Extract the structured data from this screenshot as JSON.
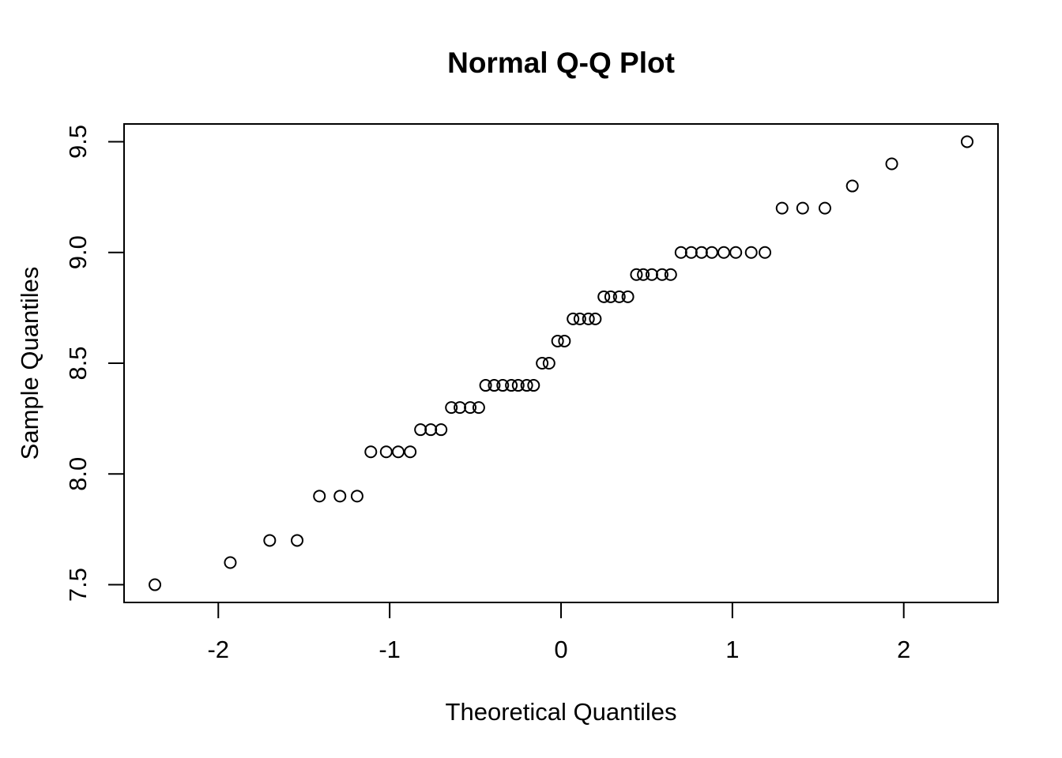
{
  "chart_data": {
    "type": "scatter",
    "title": "Normal Q-Q Plot",
    "xlabel": "Theoretical Quantiles",
    "ylabel": "Sample Quantiles",
    "xlim": [
      -2.55,
      2.55
    ],
    "ylim": [
      7.42,
      9.58
    ],
    "xticks": [
      -2,
      -1,
      0,
      1,
      2
    ],
    "xtick_labels": [
      "-2",
      "-1",
      "0",
      "1",
      "2"
    ],
    "yticks": [
      7.5,
      8.0,
      8.5,
      9.0,
      9.5
    ],
    "ytick_labels": [
      "7.5",
      "8.0",
      "8.5",
      "9.0",
      "9.5"
    ],
    "grid": false,
    "marker": "open-circle",
    "series": [
      {
        "points": [
          {
            "x": -2.37,
            "y": 7.5
          },
          {
            "x": -1.93,
            "y": 7.6
          },
          {
            "x": -1.7,
            "y": 7.7
          },
          {
            "x": -1.54,
            "y": 7.7
          },
          {
            "x": -1.41,
            "y": 7.9
          },
          {
            "x": -1.29,
            "y": 7.9
          },
          {
            "x": -1.19,
            "y": 7.9
          },
          {
            "x": -1.11,
            "y": 8.1
          },
          {
            "x": -1.02,
            "y": 8.1
          },
          {
            "x": -0.95,
            "y": 8.1
          },
          {
            "x": -0.88,
            "y": 8.1
          },
          {
            "x": -0.82,
            "y": 8.2
          },
          {
            "x": -0.76,
            "y": 8.2
          },
          {
            "x": -0.7,
            "y": 8.2
          },
          {
            "x": -0.64,
            "y": 8.3
          },
          {
            "x": -0.59,
            "y": 8.3
          },
          {
            "x": -0.53,
            "y": 8.3
          },
          {
            "x": -0.48,
            "y": 8.3
          },
          {
            "x": -0.44,
            "y": 8.4
          },
          {
            "x": -0.39,
            "y": 8.4
          },
          {
            "x": -0.34,
            "y": 8.4
          },
          {
            "x": -0.29,
            "y": 8.4
          },
          {
            "x": -0.25,
            "y": 8.4
          },
          {
            "x": -0.2,
            "y": 8.4
          },
          {
            "x": -0.16,
            "y": 8.4
          },
          {
            "x": -0.11,
            "y": 8.5
          },
          {
            "x": -0.07,
            "y": 8.5
          },
          {
            "x": -0.02,
            "y": 8.6
          },
          {
            "x": 0.02,
            "y": 8.6
          },
          {
            "x": 0.07,
            "y": 8.7
          },
          {
            "x": 0.11,
            "y": 8.7
          },
          {
            "x": 0.16,
            "y": 8.7
          },
          {
            "x": 0.2,
            "y": 8.7
          },
          {
            "x": 0.25,
            "y": 8.8
          },
          {
            "x": 0.29,
            "y": 8.8
          },
          {
            "x": 0.34,
            "y": 8.8
          },
          {
            "x": 0.39,
            "y": 8.8
          },
          {
            "x": 0.44,
            "y": 8.9
          },
          {
            "x": 0.48,
            "y": 8.9
          },
          {
            "x": 0.53,
            "y": 8.9
          },
          {
            "x": 0.59,
            "y": 8.9
          },
          {
            "x": 0.64,
            "y": 8.9
          },
          {
            "x": 0.7,
            "y": 9.0
          },
          {
            "x": 0.76,
            "y": 9.0
          },
          {
            "x": 0.82,
            "y": 9.0
          },
          {
            "x": 0.88,
            "y": 9.0
          },
          {
            "x": 0.95,
            "y": 9.0
          },
          {
            "x": 1.02,
            "y": 9.0
          },
          {
            "x": 1.11,
            "y": 9.0
          },
          {
            "x": 1.19,
            "y": 9.0
          },
          {
            "x": 1.29,
            "y": 9.2
          },
          {
            "x": 1.41,
            "y": 9.2
          },
          {
            "x": 1.54,
            "y": 9.2
          },
          {
            "x": 1.7,
            "y": 9.3
          },
          {
            "x": 1.93,
            "y": 9.4
          },
          {
            "x": 2.37,
            "y": 9.5
          }
        ]
      }
    ]
  }
}
